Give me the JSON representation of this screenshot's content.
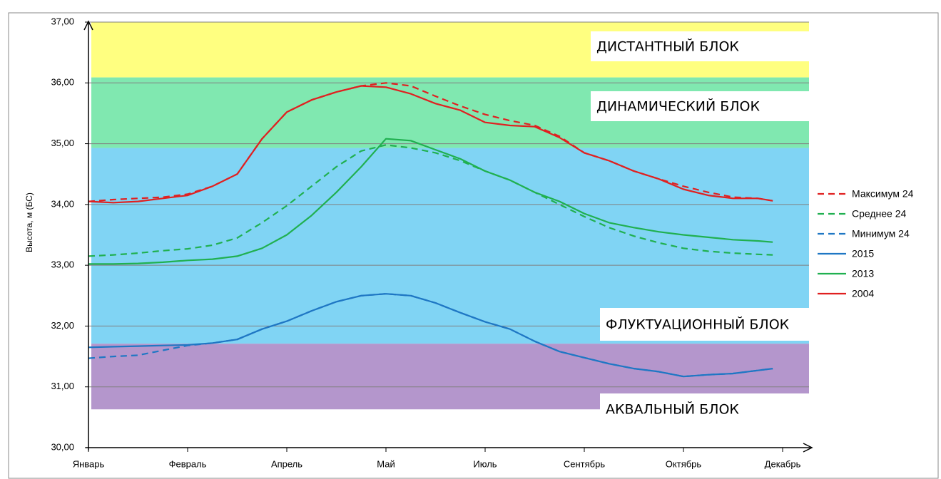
{
  "chart_data": {
    "type": "line",
    "y_label": "Высота, м (БС)",
    "xlim": [
      0,
      7
    ],
    "xticks": [
      {
        "value": 0,
        "label": "Январь"
      },
      {
        "value": 1,
        "label": "Февраль"
      },
      {
        "value": 2,
        "label": "Апрель"
      },
      {
        "value": 3,
        "label": "Май"
      },
      {
        "value": 4,
        "label": "Июль"
      },
      {
        "value": 5,
        "label": "Сентябрь"
      },
      {
        "value": 6,
        "label": "Октябрь"
      },
      {
        "value": 7,
        "label": "Декабрь"
      }
    ],
    "ylim": [
      30,
      37
    ],
    "yticks": [
      {
        "value": 30,
        "label": "30,00"
      },
      {
        "value": 31,
        "label": "31,00"
      },
      {
        "value": 32,
        "label": "32,00"
      },
      {
        "value": 33,
        "label": "33,00"
      },
      {
        "value": 34,
        "label": "34,00"
      },
      {
        "value": 35,
        "label": "35,00"
      },
      {
        "value": 36,
        "label": "36,00"
      },
      {
        "value": 37,
        "label": "37,00"
      }
    ],
    "grid": true,
    "bands": [
      {
        "label": "ДИСТАНТНЫЙ БЛОК",
        "range": [
          36.09,
          37
        ],
        "color": "#ffff80"
      },
      {
        "label": "ДИНАМИЧЕСКИЙ БЛОК",
        "range": [
          34.93,
          36.09
        ],
        "color": "#80e8b0"
      },
      {
        "label": "ФЛУКТУАЦИОННЫЙ БЛОК",
        "range": [
          31.71,
          34.93
        ],
        "color": "#80d4f4"
      },
      {
        "label": "АКВАЛЬНЫЙ БЛОК",
        "range": [
          30.63,
          31.71
        ],
        "color": "#b496cc"
      }
    ],
    "x": [
      0,
      0.25,
      0.5,
      0.75,
      1,
      1.25,
      1.5,
      1.75,
      2,
      2.25,
      2.5,
      2.75,
      3,
      3.25,
      3.5,
      3.75,
      4,
      4.25,
      4.5,
      4.75,
      5,
      5.25,
      5.5,
      5.75,
      6,
      6.25,
      6.5,
      6.75,
      6.9
    ],
    "series": [
      {
        "name": "Максимум 24",
        "color": "#e02020",
        "dashed": true,
        "values": [
          34.05,
          34.08,
          34.1,
          34.12,
          34.17,
          34.3,
          34.5,
          35.08,
          35.52,
          35.72,
          35.85,
          35.95,
          36.0,
          35.95,
          35.78,
          35.62,
          35.48,
          35.38,
          35.3,
          35.12,
          34.85,
          34.72,
          34.55,
          34.42,
          34.3,
          34.2,
          34.12,
          34.1,
          34.06
        ]
      },
      {
        "name": "Среднее 24",
        "color": "#20b050",
        "dashed": true,
        "values": [
          33.15,
          33.17,
          33.2,
          33.24,
          33.27,
          33.33,
          33.45,
          33.7,
          33.98,
          34.3,
          34.62,
          34.88,
          34.98,
          34.93,
          34.85,
          34.72,
          34.55,
          34.4,
          34.2,
          34.0,
          33.8,
          33.62,
          33.48,
          33.37,
          33.28,
          33.23,
          33.2,
          33.18,
          33.17
        ]
      },
      {
        "name": "Минимум 24",
        "color": "#1f77c4",
        "dashed": true,
        "values": [
          31.47,
          31.5,
          31.52,
          31.6,
          31.68,
          31.72,
          31.78,
          31.95,
          32.08,
          32.25,
          32.4,
          32.5,
          32.53,
          32.5,
          32.38,
          32.22,
          32.07,
          31.95,
          31.75,
          31.58,
          31.48,
          31.38,
          31.3,
          31.25,
          31.17,
          31.2,
          31.22,
          31.27,
          31.3
        ]
      },
      {
        "name": "2015",
        "color": "#1f77c4",
        "dashed": false,
        "values": [
          31.65,
          31.66,
          31.67,
          31.68,
          31.69,
          31.72,
          31.78,
          31.95,
          32.08,
          32.25,
          32.4,
          32.5,
          32.53,
          32.5,
          32.38,
          32.22,
          32.07,
          31.95,
          31.75,
          31.58,
          31.48,
          31.38,
          31.3,
          31.25,
          31.17,
          31.2,
          31.22,
          31.27,
          31.3
        ]
      },
      {
        "name": "2013",
        "color": "#20b050",
        "dashed": false,
        "values": [
          33.02,
          33.02,
          33.03,
          33.05,
          33.08,
          33.1,
          33.15,
          33.28,
          33.5,
          33.82,
          34.2,
          34.62,
          35.08,
          35.05,
          34.9,
          34.75,
          34.55,
          34.4,
          34.2,
          34.05,
          33.85,
          33.7,
          33.62,
          33.55,
          33.5,
          33.46,
          33.42,
          33.4,
          33.38
        ]
      },
      {
        "name": "2004",
        "color": "#e02020",
        "dashed": false,
        "values": [
          34.05,
          34.03,
          34.05,
          34.1,
          34.15,
          34.3,
          34.5,
          35.08,
          35.52,
          35.72,
          35.85,
          35.95,
          35.93,
          35.82,
          35.66,
          35.55,
          35.35,
          35.3,
          35.28,
          35.1,
          34.85,
          34.72,
          34.55,
          34.42,
          34.25,
          34.15,
          34.1,
          34.1,
          34.06
        ]
      }
    ]
  }
}
